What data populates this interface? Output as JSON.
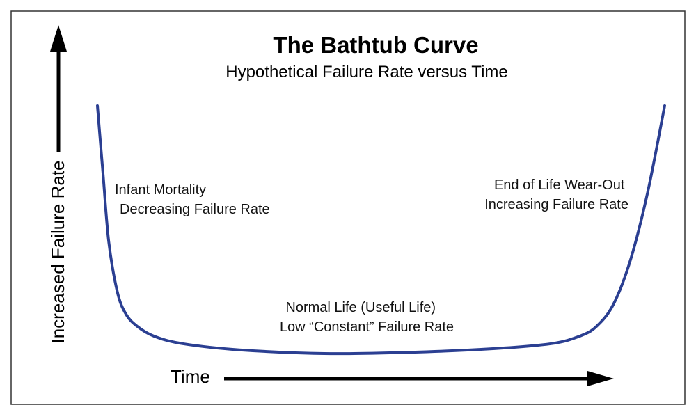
{
  "chart_data": {
    "type": "line",
    "title": "The Bathtub Curve",
    "subtitle": "Hypothetical Failure Rate versus Time",
    "xlabel": "Time",
    "ylabel": "Increased Failure Rate",
    "xlim": [
      0,
      1
    ],
    "ylim": [
      0,
      1
    ],
    "grid": false,
    "series": [
      {
        "color": "#2b3f92",
        "x": [
          0.0,
          0.01,
          0.02,
          0.035,
          0.05,
          0.07,
          0.1,
          0.15,
          0.25,
          0.4,
          0.55,
          0.7,
          0.8,
          0.85,
          0.88,
          0.91,
          0.94,
          0.97,
          1.0
        ],
        "y": [
          1.0,
          0.72,
          0.45,
          0.25,
          0.16,
          0.11,
          0.07,
          0.04,
          0.015,
          0.0,
          0.005,
          0.02,
          0.04,
          0.07,
          0.11,
          0.2,
          0.38,
          0.65,
          1.0
        ]
      }
    ],
    "annotations": [
      {
        "lines": [
          "Infant Mortality",
          "Decreasing Failure Rate"
        ]
      },
      {
        "lines": [
          "End of Life Wear-Out",
          "Increasing Failure Rate"
        ]
      },
      {
        "lines": [
          "Normal Life (Useful Life)",
          "Low “Constant” Failure Rate"
        ]
      }
    ]
  }
}
